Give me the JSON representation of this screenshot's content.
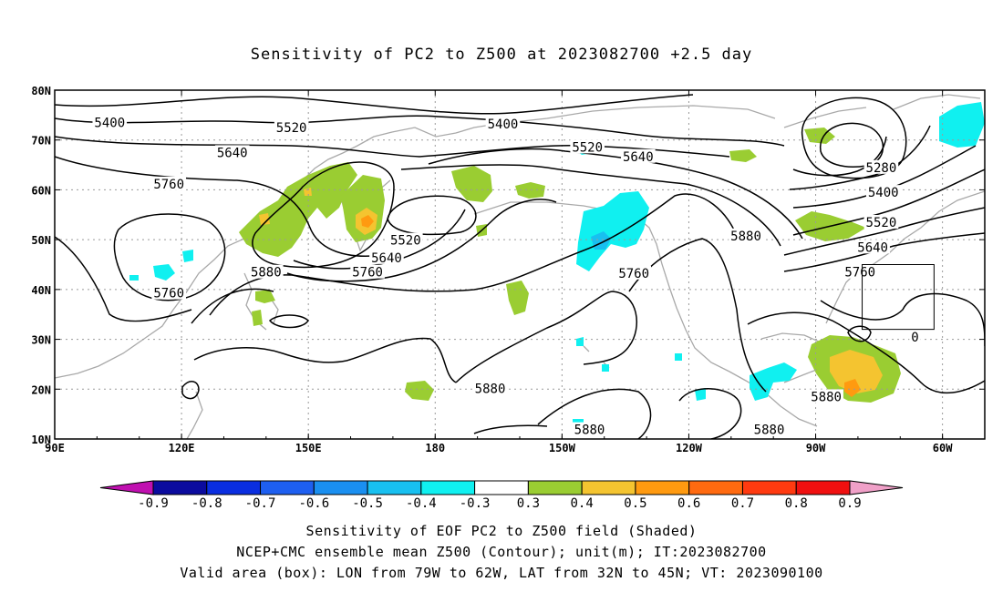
{
  "title": "Sensitivity of PC2 to Z500 at 2023082700 +2.5 day",
  "map": {
    "lon_range": [
      90,
      310
    ],
    "lat_range": [
      10,
      80
    ],
    "xticks": [
      {
        "lon": 90,
        "label": "90E"
      },
      {
        "lon": 120,
        "label": "120E"
      },
      {
        "lon": 150,
        "label": "150E"
      },
      {
        "lon": 180,
        "label": "180"
      },
      {
        "lon": 210,
        "label": "150W"
      },
      {
        "lon": 240,
        "label": "120W"
      },
      {
        "lon": 270,
        "label": "90W"
      },
      {
        "lon": 300,
        "label": "60W"
      }
    ],
    "yticks": [
      {
        "lat": 10,
        "label": "10N"
      },
      {
        "lat": 20,
        "label": "20N"
      },
      {
        "lat": 30,
        "label": "30N"
      },
      {
        "lat": 40,
        "label": "40N"
      },
      {
        "lat": 50,
        "label": "50N"
      },
      {
        "lat": 60,
        "label": "60N"
      },
      {
        "lat": 70,
        "label": "70N"
      },
      {
        "lat": 80,
        "label": "80N"
      }
    ],
    "valid_box": {
      "lon": [
        281,
        298
      ],
      "lat": [
        32,
        45
      ]
    },
    "contour_labels": [
      {
        "text": "5400",
        "lon": 103,
        "lat": 73.5
      },
      {
        "text": "5400",
        "lon": 196,
        "lat": 73.2
      },
      {
        "text": "5520",
        "lon": 146,
        "lat": 72.5
      },
      {
        "text": "5520",
        "lon": 216,
        "lat": 68.6
      },
      {
        "text": "5640",
        "lon": 132,
        "lat": 67.5
      },
      {
        "text": "5640",
        "lon": 228,
        "lat": 66.7
      },
      {
        "text": "5760",
        "lon": 117,
        "lat": 61.2
      },
      {
        "text": "5520",
        "lon": 173,
        "lat": 49.9
      },
      {
        "text": "5640",
        "lon": 168.5,
        "lat": 46.4
      },
      {
        "text": "5760",
        "lon": 164,
        "lat": 43.5
      },
      {
        "text": "5880",
        "lon": 140,
        "lat": 43.5
      },
      {
        "text": "5760",
        "lon": 117,
        "lat": 39.3
      },
      {
        "text": "5760",
        "lon": 227,
        "lat": 43.3
      },
      {
        "text": "5880",
        "lon": 253.5,
        "lat": 50.8
      },
      {
        "text": "5880",
        "lon": 193,
        "lat": 20.1
      },
      {
        "text": "5880",
        "lon": 216.5,
        "lat": 11.9
      },
      {
        "text": "5880",
        "lon": 259,
        "lat": 11.9
      },
      {
        "text": "5880",
        "lon": 272.5,
        "lat": 18.5
      },
      {
        "text": "5760",
        "lon": 280.5,
        "lat": 43.5
      },
      {
        "text": "5640",
        "lon": 283.5,
        "lat": 48.5
      },
      {
        "text": "5520",
        "lon": 285.5,
        "lat": 53.5
      },
      {
        "text": "5400",
        "lon": 286,
        "lat": 59.5
      },
      {
        "text": "5280",
        "lon": 285.5,
        "lat": 64.5
      },
      {
        "text": "0",
        "lon": 293.5,
        "lat": 30.5
      }
    ]
  },
  "colorbar": {
    "labels": [
      "-0.9",
      "-0.8",
      "-0.7",
      "-0.6",
      "-0.5",
      "-0.4",
      "-0.3",
      "0.3",
      "0.4",
      "0.5",
      "0.6",
      "0.7",
      "0.8",
      "0.9"
    ],
    "left_arrow_color": "#c010b0",
    "right_arrow_color": "#f0a0c8",
    "colors": [
      "#0b0b9e",
      "#0a2ee0",
      "#1e5ff0",
      "#1a8ff0",
      "#18c0f0",
      "#10f0f0",
      "#ffffff",
      "#9acd32",
      "#f4c430",
      "#ff9a10",
      "#ff6a10",
      "#ff3a10",
      "#f01010"
    ]
  },
  "captions": {
    "line1": "Sensitivity of EOF PC2 to Z500 field (Shaded)",
    "line2": "NCEP+CMC ensemble mean Z500 (Contour); unit(m); IT:2023082700",
    "line3": "Valid area (box): LON from 79W to 62W, LAT from 32N to 45N; VT: 2023090100"
  },
  "colors": {
    "contour": "#000000",
    "coast": "#a9a9a9",
    "grid": "#9a9a9a",
    "shade_positive_low": "#9acd32",
    "shade_positive_mid": "#f4c430",
    "shade_positive_high": "#ff9a10",
    "shade_negative": "#10f0f0"
  }
}
